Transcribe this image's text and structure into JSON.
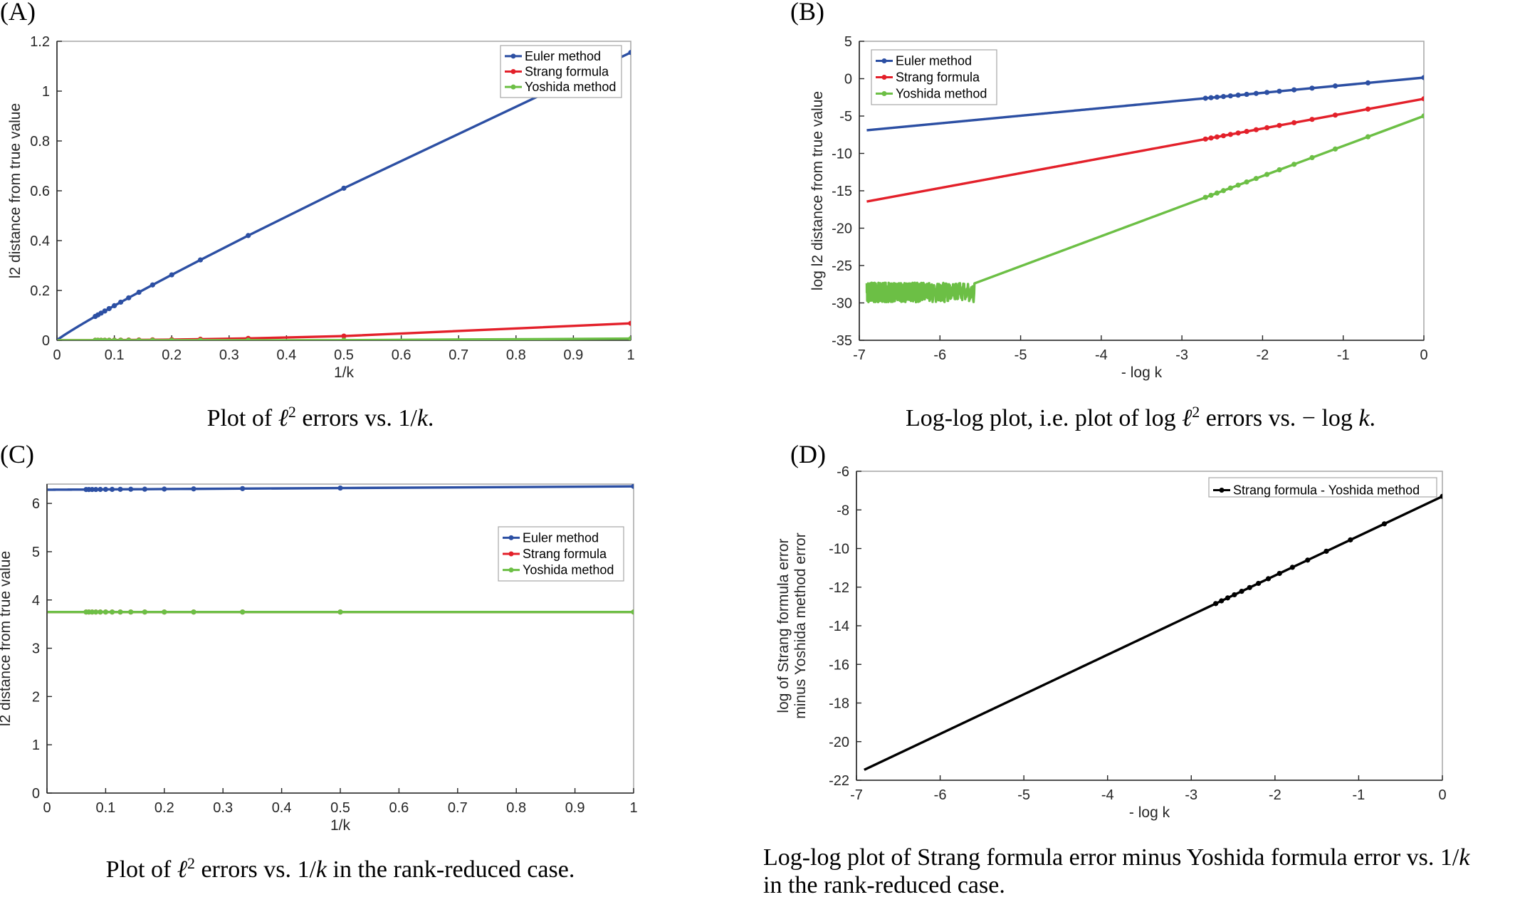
{
  "colors": {
    "euler": "#2c4fa3",
    "strang": "#e3202a",
    "yoshida": "#6cbf45",
    "diff": "#000000",
    "axes": "#262626",
    "frame": "#a6a6a6"
  },
  "panels": {
    "A": {
      "letter": "(A)",
      "caption": {
        "pre": "Plot of ",
        "ell": "ℓ",
        "sup": "2",
        "post": " errors vs. 1/",
        "k": "k",
        "end": "."
      }
    },
    "B": {
      "letter": "(B)",
      "caption": {
        "pre": "Log-log plot, i.e. plot of log ",
        "ell": "ℓ",
        "sup": "2",
        "post": " errors vs. − log ",
        "k": "k",
        "end": "."
      }
    },
    "C": {
      "letter": "(C)",
      "caption": {
        "pre": "Plot of ",
        "ell": "ℓ",
        "sup": "2",
        "post": " errors vs. 1/",
        "k": "k",
        "end": " in the rank-reduced case."
      }
    },
    "D": {
      "letter": "(D)",
      "caption": {
        "line1": "Log-log plot of Strang formula error minus Yoshida formula error vs. 1/",
        "k": "k",
        "line2": "in the rank-reduced case."
      }
    }
  },
  "chart_data": [
    {
      "id": "A",
      "type": "line",
      "xlabel": "1/k",
      "ylabel": "l2 distance from true value",
      "xlim": [
        0,
        1
      ],
      "ylim": [
        0,
        1.2
      ],
      "xticks": [
        "0",
        "0.1",
        "0.2",
        "0.3",
        "0.4",
        "0.5",
        "0.6",
        "0.7",
        "0.8",
        "0.9",
        "1"
      ],
      "yticks": [
        "0",
        "0.2",
        "0.4",
        "0.6",
        "0.8",
        "1",
        "1.2"
      ],
      "legend_position": "top-right",
      "x_formula": "1/k",
      "k_range": [
        1,
        1000
      ],
      "series": [
        {
          "name": "Euler method",
          "color_key": "euler",
          "formula": "1.155*x^0.92"
        },
        {
          "name": "Strang formula",
          "color_key": "strang",
          "formula": "0.068*x^2"
        },
        {
          "name": "Yoshida method",
          "color_key": "yoshida",
          "formula": "0.0068*x^4"
        }
      ]
    },
    {
      "id": "B",
      "type": "line",
      "xlabel": "- log k",
      "ylabel": "log l2 distance from true value",
      "xlim": [
        -7,
        0
      ],
      "ylim": [
        -35,
        5
      ],
      "xticks": [
        "-7",
        "-6",
        "-5",
        "-4",
        "-3",
        "-2",
        "-1",
        "0"
      ],
      "yticks": [
        "-35",
        "-30",
        "-25",
        "-20",
        "-15",
        "-10",
        "-5",
        "0",
        "5"
      ],
      "legend_position": "top-left",
      "x_formula": "-ln(k)",
      "k_range": [
        1,
        1000
      ],
      "series": [
        {
          "name": "Euler method",
          "color_key": "euler",
          "formula": "0.144 + 1.02*x"
        },
        {
          "name": "Strang formula",
          "color_key": "strang",
          "formula": "-2.69 + 1.99*x"
        },
        {
          "name": "Yoshida method",
          "color_key": "yoshida",
          "formula": "-4.99 + 4.02*x",
          "noise_floor": -28.6
        }
      ]
    },
    {
      "id": "C",
      "type": "line",
      "xlabel": "1/k",
      "ylabel": "l2 distance from true value",
      "xlim": [
        0,
        1
      ],
      "ylim": [
        0,
        6.4
      ],
      "xticks": [
        "0",
        "0.1",
        "0.2",
        "0.3",
        "0.4",
        "0.5",
        "0.6",
        "0.7",
        "0.8",
        "0.9",
        "1"
      ],
      "yticks": [
        "0",
        "1",
        "2",
        "3",
        "4",
        "5",
        "6"
      ],
      "legend_position": "middle-right",
      "x_formula": "1/k",
      "k_range": [
        1,
        1000
      ],
      "series": [
        {
          "name": "Euler method",
          "color_key": "euler",
          "formula": "6.283 + 0.07*x"
        },
        {
          "name": "Strang formula",
          "color_key": "strang",
          "formula": "3.75"
        },
        {
          "name": "Yoshida method",
          "color_key": "yoshida",
          "formula": "3.75"
        }
      ]
    },
    {
      "id": "D",
      "type": "line",
      "xlabel": "- log k",
      "ylabel_lines": [
        "log of Strang formula error",
        "minus Yoshida method error"
      ],
      "xlim": [
        -7,
        0
      ],
      "ylim": [
        -22,
        -6
      ],
      "xticks": [
        "-7",
        "-6",
        "-5",
        "-4",
        "-3",
        "-2",
        "-1",
        "0"
      ],
      "yticks": [
        "-22",
        "-20",
        "-18",
        "-16",
        "-14",
        "-12",
        "-10",
        "-8",
        "-6"
      ],
      "legend_position": "top-right",
      "x_formula": "-ln(k)",
      "k_range": [
        1,
        1000
      ],
      "series": [
        {
          "name": "Strang formula - Yoshida method",
          "color_key": "diff",
          "formula": "-7.3 + 2.05*x"
        }
      ]
    }
  ]
}
